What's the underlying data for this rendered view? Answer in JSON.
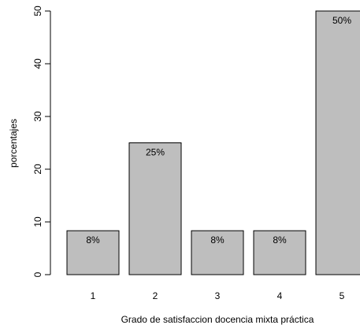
{
  "chart_data": {
    "type": "bar",
    "categories": [
      "1",
      "2",
      "3",
      "4",
      "5"
    ],
    "values": [
      8.33,
      25,
      8.33,
      8.33,
      50
    ],
    "data_labels": [
      "8%",
      "25%",
      "8%",
      "8%",
      "50%"
    ],
    "xlabel": "Grado de satisfaccion docencia mixta práctica",
    "ylabel": "porcentajes",
    "ylim": [
      0,
      50
    ],
    "yticks": [
      "0",
      "10",
      "20",
      "30",
      "40",
      "50"
    ],
    "grid": false,
    "bar_color": "#bebebe",
    "border_color": "#000000"
  }
}
